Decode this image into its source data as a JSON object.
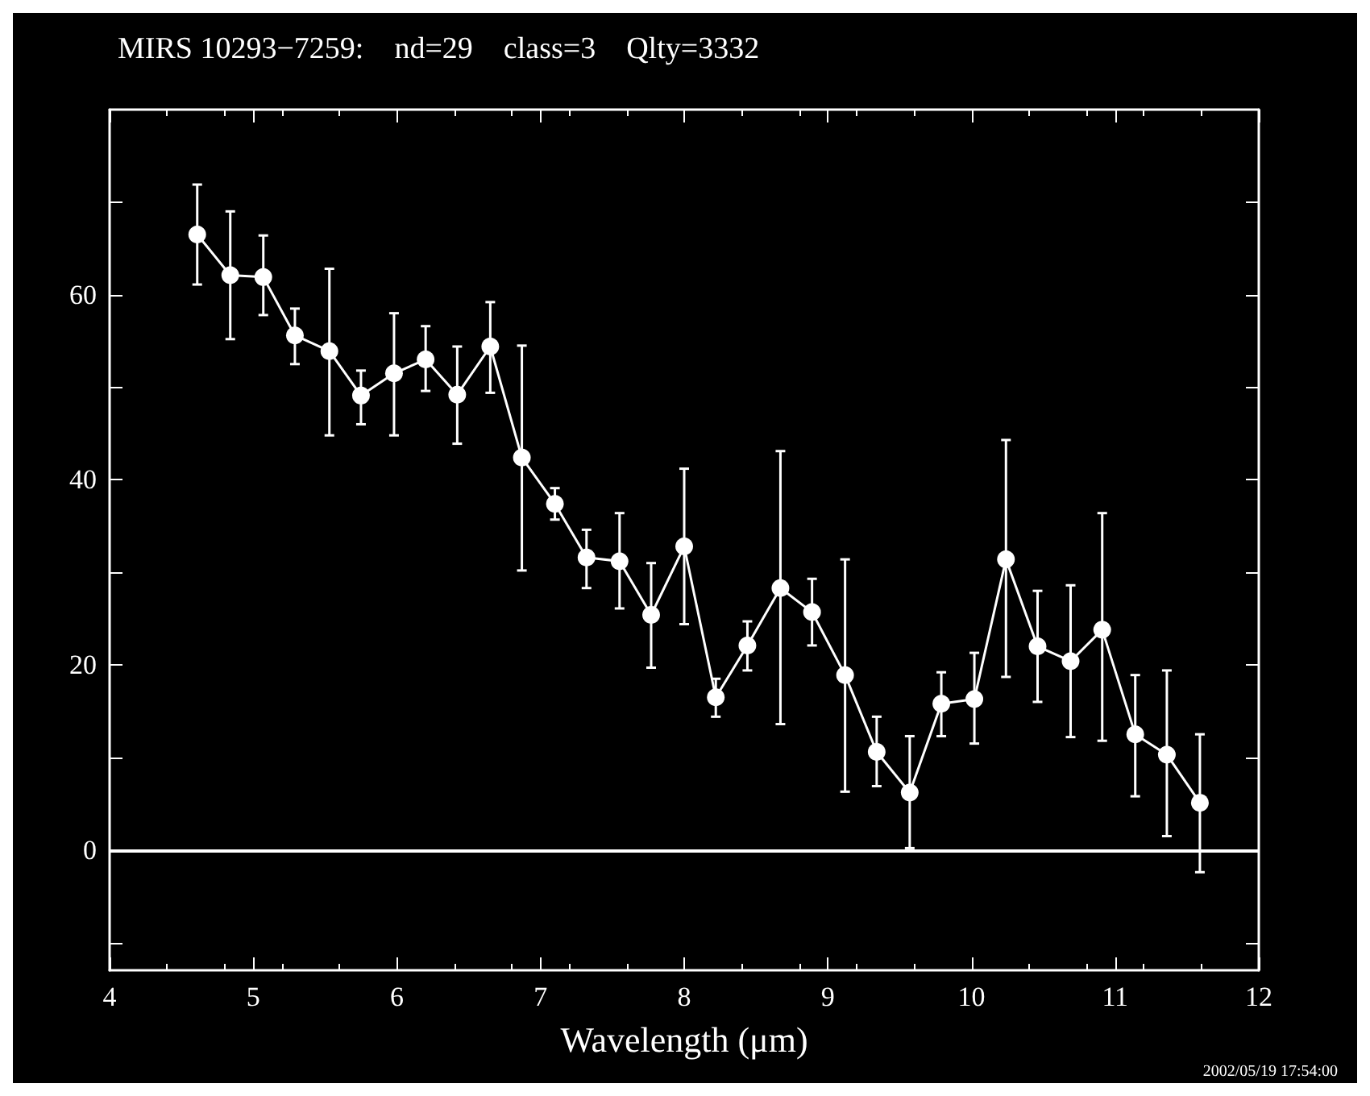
{
  "chart_data": {
    "type": "line",
    "title": "MIRS 10293−7259:    nd=29    class=3    Qlty=3332",
    "xlabel": "Wavelength (μm)",
    "annotations": [
      "2002/05/19 17:54:00"
    ],
    "x": [
      4.61,
      4.84,
      5.07,
      5.29,
      5.53,
      5.75,
      5.98,
      6.2,
      6.42,
      6.65,
      6.87,
      7.1,
      7.32,
      7.55,
      7.77,
      8.0,
      8.22,
      8.44,
      8.67,
      8.89,
      9.12,
      9.34,
      9.57,
      9.79,
      10.02,
      10.24,
      10.46,
      10.69,
      10.91,
      11.14,
      11.36,
      11.59
    ],
    "series": [
      {
        "color": "#ffffff",
        "values": [
          66.5,
          62.1,
          61.9,
          55.6,
          53.9,
          49.1,
          51.5,
          53.0,
          49.2,
          54.4,
          42.4,
          37.4,
          31.6,
          31.2,
          25.4,
          32.8,
          16.5,
          22.1,
          28.3,
          25.7,
          18.9,
          10.6,
          6.2,
          15.8,
          16.3,
          31.4,
          22.0,
          20.4,
          23.8,
          12.5,
          10.3,
          5.1
        ],
        "errors": [
          [
            61.1,
            71.9
          ],
          [
            55.2,
            69.0
          ],
          [
            57.8,
            66.4
          ],
          [
            52.5,
            58.5
          ],
          [
            44.8,
            62.8
          ],
          [
            46.0,
            51.8
          ],
          [
            44.8,
            58.0
          ],
          [
            49.6,
            56.6
          ],
          [
            43.9,
            54.4
          ],
          [
            49.4,
            59.2
          ],
          [
            30.2,
            54.5
          ],
          [
            35.7,
            39.1
          ],
          [
            28.3,
            34.6
          ],
          [
            26.1,
            36.4
          ],
          [
            19.7,
            31.0
          ],
          [
            24.4,
            41.2
          ],
          [
            14.4,
            18.5
          ],
          [
            19.4,
            24.7
          ],
          [
            13.6,
            43.1
          ],
          [
            22.1,
            29.3
          ],
          [
            6.3,
            31.4
          ],
          [
            6.9,
            14.4
          ],
          [
            0.2,
            12.3
          ],
          [
            12.3,
            19.2
          ],
          [
            11.5,
            21.3
          ],
          [
            18.7,
            44.3
          ],
          [
            16.0,
            28.0
          ],
          [
            12.2,
            28.6
          ],
          [
            11.8,
            36.4
          ],
          [
            5.8,
            18.9
          ],
          [
            1.5,
            19.4
          ],
          [
            -2.4,
            12.5
          ]
        ]
      }
    ],
    "xlim": [
      4,
      12
    ],
    "xticks": [
      4,
      5,
      6,
      7,
      8,
      9,
      10,
      11,
      12
    ],
    "ylim": [
      -13,
      80
    ],
    "yticks": [
      {
        "value": -10,
        "label": null
      },
      0,
      {
        "value": 10,
        "label": null
      },
      20,
      {
        "value": 30,
        "label": null
      },
      40,
      {
        "value": 50,
        "label": null
      },
      60,
      {
        "value": 70,
        "label": null
      }
    ],
    "ref_lines": [
      {
        "axis": "y",
        "value": 0,
        "color": "#ffffff",
        "line_style": "solid"
      }
    ],
    "marker": "circle",
    "line_style": "solid",
    "grid": false
  }
}
